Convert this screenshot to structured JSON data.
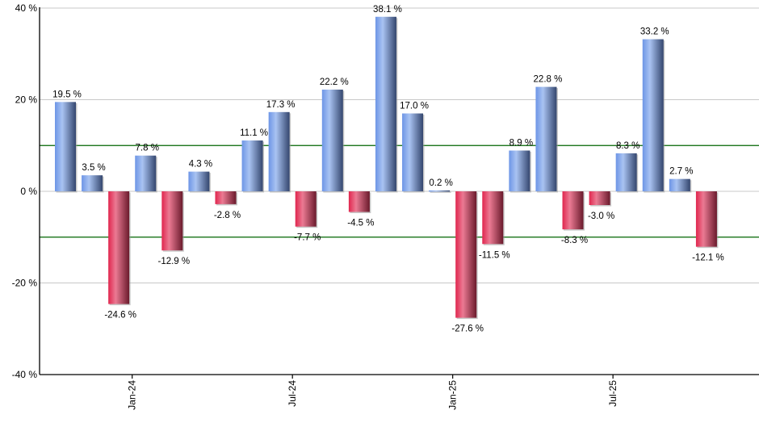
{
  "chart_data": {
    "type": "bar",
    "title": "",
    "xlabel": "",
    "ylabel": "",
    "ylim": [
      -40,
      40
    ],
    "yticks": [
      40,
      20,
      0,
      -20,
      -40
    ],
    "ytick_labels": [
      "40 %",
      "20 %",
      "0 %",
      "-20 %",
      "-40 %"
    ],
    "reference_lines": [
      10,
      -10
    ],
    "reference_line_color": "#006400",
    "grid": true,
    "legend": null,
    "xtick_labels": [
      {
        "label": "Jan-24",
        "after_bar_index": 2
      },
      {
        "label": "Jul-24",
        "after_bar_index": 8
      },
      {
        "label": "Jan-25",
        "after_bar_index": 14
      },
      {
        "label": "Jul-25",
        "after_bar_index": 20
      }
    ],
    "value_suffix": " %",
    "values": [
      19.5,
      3.5,
      -24.6,
      7.8,
      -12.9,
      4.3,
      -2.8,
      11.1,
      17.3,
      -7.7,
      22.2,
      -4.5,
      38.1,
      17.0,
      0.2,
      -27.6,
      -11.5,
      8.9,
      22.8,
      -8.3,
      -3.0,
      8.3,
      33.2,
      2.7,
      -12.1
    ],
    "labels": [
      "19.5 %",
      "3.5 %",
      "-24.6 %",
      "7.8 %",
      "-12.9 %",
      "4.3 %",
      "-2.8 %",
      "11.1 %",
      "17.3 %",
      "-7.7 %",
      "22.2 %",
      "-4.5 %",
      "38.1 %",
      "17.0 %",
      "0.2 %",
      "-27.6 %",
      "-11.5 %",
      "8.9 %",
      "22.8 %",
      "-8.3 %",
      "-3.0 %",
      "8.3 %",
      "33.2 %",
      "2.7 %",
      "-12.1 %"
    ],
    "colors": {
      "positive": "#6f93d8",
      "negative": "#d63a5c",
      "grid": "#c8c8c8",
      "axis": "#000000"
    }
  }
}
